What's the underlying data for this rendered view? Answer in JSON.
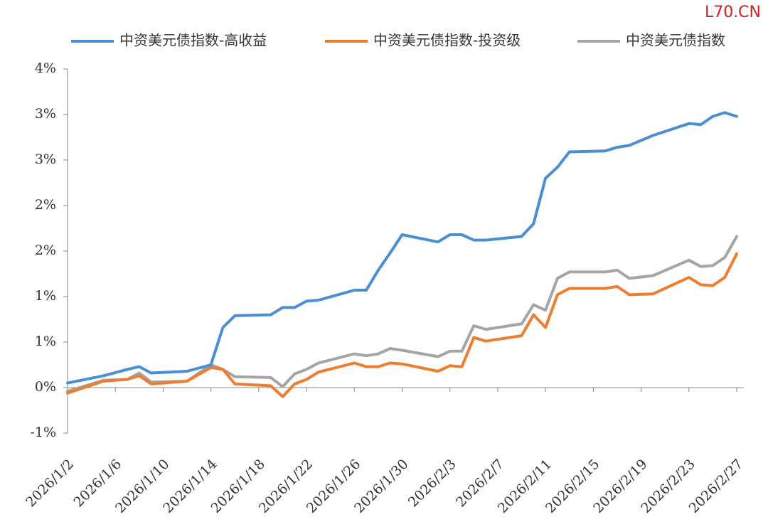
{
  "watermark": "L70.CN",
  "chart_data": {
    "type": "line",
    "x": [
      "2026/1/2",
      "2026/1/5",
      "2026/1/7",
      "2026/1/8",
      "2026/1/9",
      "2026/1/12",
      "2026/1/14",
      "2026/1/15",
      "2026/1/16",
      "2026/1/19",
      "2026/1/20",
      "2026/1/21",
      "2026/1/22",
      "2026/1/23",
      "2026/1/26",
      "2026/1/27",
      "2026/1/28",
      "2026/1/29",
      "2026/1/30",
      "2026/2/2",
      "2026/2/3",
      "2026/2/4",
      "2026/2/5",
      "2026/2/6",
      "2026/2/9",
      "2026/2/10",
      "2026/2/11",
      "2026/2/12",
      "2026/2/13",
      "2026/2/16",
      "2026/2/17",
      "2026/2/18",
      "2026/2/20",
      "2026/2/23",
      "2026/2/24",
      "2026/2/25",
      "2026/2/26",
      "2026/2/27"
    ],
    "series": [
      {
        "name": "中资美元债指数-高收益",
        "color": "#4a8fd6",
        "values": [
          0.05,
          0.13,
          0.2,
          0.23,
          0.16,
          0.18,
          0.25,
          0.66,
          0.79,
          0.8,
          0.88,
          0.88,
          0.95,
          0.96,
          1.07,
          1.07,
          1.29,
          1.48,
          1.68,
          1.6,
          1.68,
          1.68,
          1.62,
          1.62,
          1.66,
          1.8,
          2.3,
          2.42,
          2.59,
          2.6,
          2.64,
          2.66,
          2.77,
          2.9,
          2.89,
          2.98,
          3.02,
          2.98
        ]
      },
      {
        "name": "中资美元债指数-投资级",
        "color": "#ed7d31",
        "values": [
          -0.06,
          0.07,
          0.09,
          0.13,
          0.04,
          0.07,
          0.22,
          0.2,
          0.04,
          0.02,
          -0.1,
          0.04,
          0.09,
          0.17,
          0.27,
          0.23,
          0.23,
          0.27,
          0.26,
          0.18,
          0.24,
          0.23,
          0.55,
          0.51,
          0.57,
          0.8,
          0.66,
          1.02,
          1.09,
          1.09,
          1.11,
          1.02,
          1.03,
          1.21,
          1.13,
          1.12,
          1.21,
          1.47
        ]
      },
      {
        "name": "中资美元债指数",
        "color": "#a5a5a5",
        "values": [
          -0.04,
          0.08,
          0.09,
          0.16,
          0.06,
          0.07,
          0.25,
          0.2,
          0.12,
          0.11,
          0.01,
          0.15,
          0.2,
          0.27,
          0.37,
          0.35,
          0.37,
          0.43,
          0.41,
          0.34,
          0.4,
          0.4,
          0.68,
          0.64,
          0.7,
          0.91,
          0.85,
          1.2,
          1.27,
          1.27,
          1.29,
          1.2,
          1.23,
          1.4,
          1.33,
          1.34,
          1.43,
          1.66
        ]
      }
    ],
    "xlim": [
      "2026/1/2",
      "2026/2/27"
    ],
    "xticks": [
      "2026/1/2",
      "2026/1/6",
      "2026/1/10",
      "2026/1/14",
      "2026/1/18",
      "2026/1/22",
      "2026/1/26",
      "2026/1/30",
      "2026/2/3",
      "2026/2/7",
      "2026/2/11",
      "2026/2/15",
      "2026/2/19",
      "2026/2/23",
      "2026/2/27"
    ],
    "ylim": [
      -0.5,
      3.5
    ],
    "yticks": [
      {
        "value": -0.5,
        "label": "-1%"
      },
      {
        "value": 0,
        "label": "0%"
      },
      {
        "value": 0.5,
        "label": "1%"
      },
      {
        "value": 1,
        "label": "1%"
      },
      {
        "value": 1.5,
        "label": "2%"
      },
      {
        "value": 2,
        "label": "2%"
      },
      {
        "value": 2.5,
        "label": "3%"
      },
      {
        "value": 3,
        "label": "3%"
      },
      {
        "value": 3.5,
        "label": "4%"
      }
    ]
  }
}
